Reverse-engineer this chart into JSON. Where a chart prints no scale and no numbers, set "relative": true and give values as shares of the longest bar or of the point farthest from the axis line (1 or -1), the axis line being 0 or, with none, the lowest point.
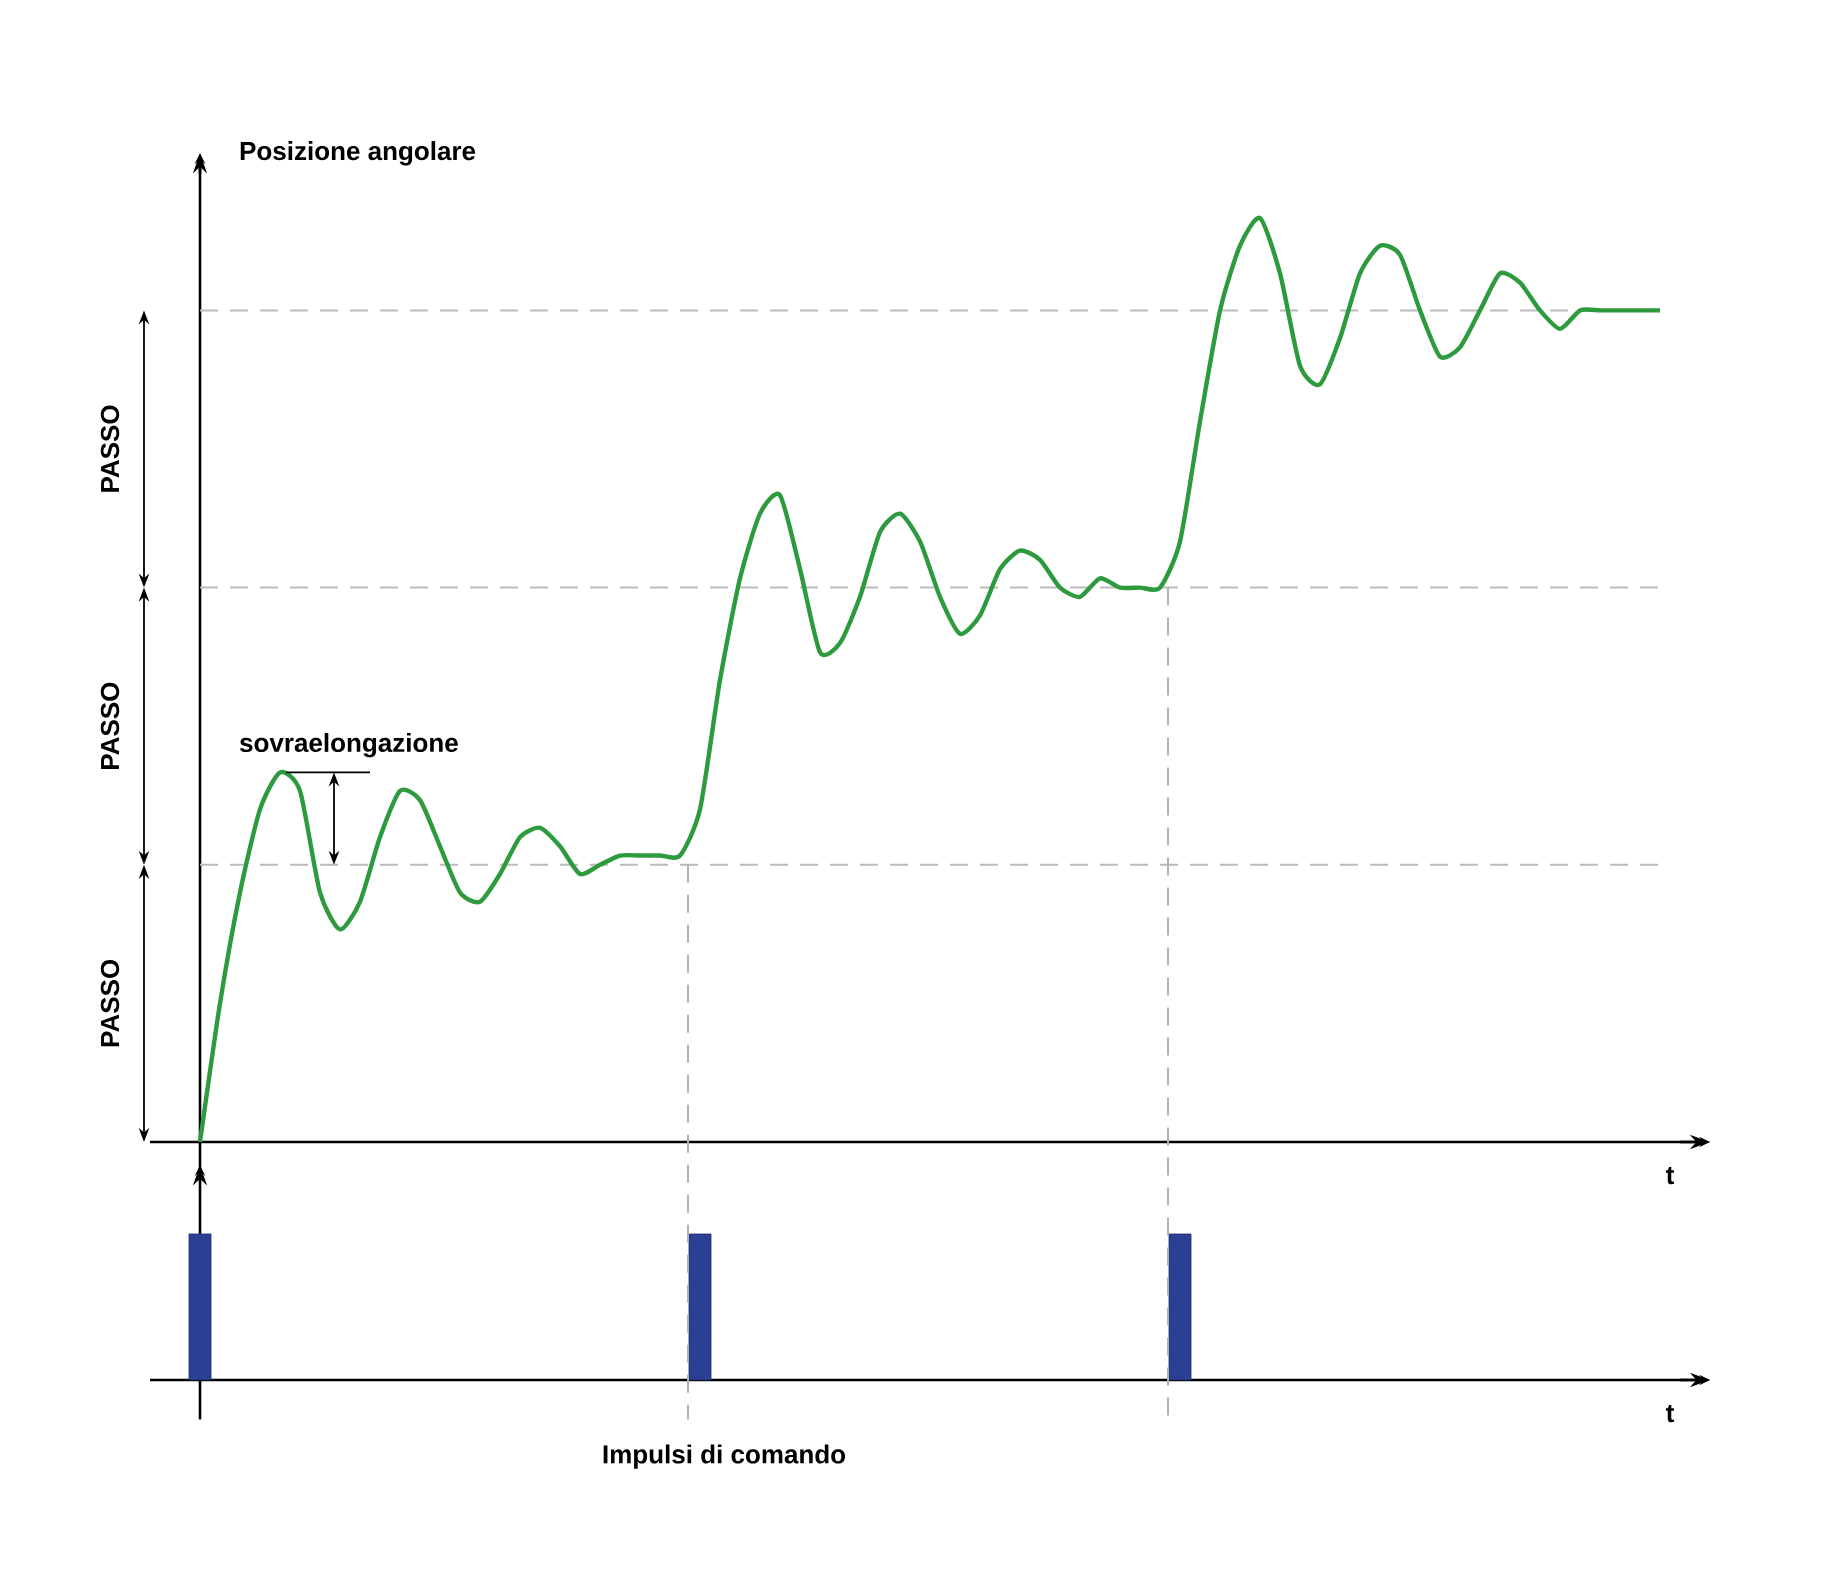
{
  "chart_data": [
    {
      "type": "line",
      "ylabel": "Posizione angolare",
      "xlabel": "t",
      "relative": true,
      "tick_labels": false,
      "color": "#2e9a3e",
      "categories": [
        null,
        null,
        null,
        null,
        null,
        null,
        null,
        null,
        null,
        null,
        null,
        null,
        null,
        null,
        null,
        null,
        null,
        null,
        null,
        null,
        null,
        null,
        null,
        null,
        null,
        null,
        null,
        null,
        null,
        null,
        null,
        null,
        null,
        null,
        null,
        null,
        null,
        null,
        null,
        null,
        null,
        null,
        null,
        null,
        null,
        null,
        null,
        null,
        null,
        null,
        null,
        null,
        null,
        null,
        null,
        null,
        null,
        null,
        null,
        null,
        null,
        null,
        null,
        null,
        null,
        null,
        null,
        null,
        null,
        null,
        null,
        null,
        null,
        null
      ],
      "values": [
        0,
        0.15,
        0.27,
        0.36,
        0.4,
        0.38,
        0.27,
        0.23,
        0.26,
        0.33,
        0.38,
        0.37,
        0.32,
        0.27,
        0.26,
        0.29,
        0.33,
        0.34,
        0.32,
        0.29,
        0.3,
        0.31,
        0.31,
        0.31,
        0.31,
        0.36,
        0.5,
        0.61,
        0.68,
        0.7,
        0.62,
        0.53,
        0.54,
        0.59,
        0.66,
        0.68,
        0.65,
        0.59,
        0.55,
        0.57,
        0.62,
        0.64,
        0.63,
        0.6,
        0.59,
        0.61,
        0.6,
        0.6,
        0.6,
        0.65,
        0.78,
        0.9,
        0.97,
        1.0,
        0.94,
        0.84,
        0.82,
        0.87,
        0.94,
        0.97,
        0.96,
        0.9,
        0.85,
        0.86,
        0.9,
        0.94,
        0.93,
        0.9,
        0.88,
        0.9,
        0.9,
        0.9,
        0.9,
        0.9
      ],
      "ref_lines": [
        {
          "axis": "y",
          "value": 0.3,
          "color": "#bbbbbb",
          "line_style": "dashed"
        },
        {
          "axis": "y",
          "value": 0.6,
          "color": "#bbbbbb",
          "line_style": "dashed"
        },
        {
          "axis": "y",
          "value": 0.9,
          "color": "#bbbbbb",
          "line_style": "dashed"
        }
      ],
      "annotations": [
        "sovraelongazione",
        "PASSO",
        "PASSO",
        "PASSO"
      ]
    },
    {
      "type": "bar",
      "xlabel": "t",
      "relative": true,
      "tick_labels": false,
      "color": "#2b3f94",
      "categories": [
        null,
        null,
        null,
        null,
        null,
        null,
        null,
        null,
        null,
        null,
        null,
        null,
        null,
        null,
        null,
        null,
        null,
        null,
        null,
        null,
        null,
        null,
        null,
        null,
        null,
        null,
        null,
        null,
        null,
        null,
        null,
        null,
        null,
        null,
        null,
        null,
        null,
        null,
        null,
        null,
        null,
        null,
        null,
        null,
        null,
        null,
        null,
        null,
        null,
        null,
        null,
        null,
        null,
        null,
        null,
        null,
        null,
        null,
        null,
        null,
        null,
        null,
        null,
        null,
        null,
        null,
        null,
        null,
        null,
        null,
        null,
        null,
        null,
        null
      ],
      "values": [
        1,
        null,
        null,
        null,
        null,
        null,
        null,
        null,
        null,
        null,
        null,
        null,
        null,
        null,
        null,
        null,
        null,
        null,
        null,
        null,
        null,
        null,
        null,
        null,
        null,
        1,
        null,
        null,
        null,
        null,
        null,
        null,
        null,
        null,
        null,
        null,
        null,
        null,
        null,
        null,
        null,
        null,
        null,
        null,
        null,
        null,
        null,
        null,
        null,
        1,
        null,
        null,
        null,
        null,
        null,
        null,
        null,
        null,
        null,
        null,
        null,
        null,
        null,
        null,
        null,
        null,
        null,
        null,
        null,
        null,
        null,
        null,
        null,
        null
      ],
      "annotations": [
        "Impulsi di comando"
      ]
    }
  ]
}
